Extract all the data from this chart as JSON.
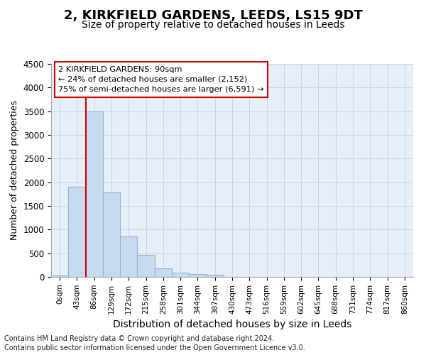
{
  "title": "2, KIRKFIELD GARDENS, LEEDS, LS15 9DT",
  "subtitle": "Size of property relative to detached houses in Leeds",
  "xlabel": "Distribution of detached houses by size in Leeds",
  "ylabel": "Number of detached properties",
  "footer_line1": "Contains HM Land Registry data © Crown copyright and database right 2024.",
  "footer_line2": "Contains public sector information licensed under the Open Government Licence v3.0.",
  "bar_labels": [
    "0sqm",
    "43sqm",
    "86sqm",
    "129sqm",
    "172sqm",
    "215sqm",
    "258sqm",
    "301sqm",
    "344sqm",
    "387sqm",
    "430sqm",
    "473sqm",
    "516sqm",
    "559sqm",
    "602sqm",
    "645sqm",
    "688sqm",
    "731sqm",
    "774sqm",
    "817sqm",
    "860sqm"
  ],
  "bar_values": [
    30,
    1900,
    3500,
    1780,
    850,
    460,
    175,
    95,
    65,
    50,
    0,
    0,
    0,
    0,
    0,
    0,
    0,
    0,
    0,
    0,
    0
  ],
  "bar_color": "#c8daf0",
  "bar_edge_color": "#8cb4d8",
  "ylim": [
    0,
    4500
  ],
  "yticks": [
    0,
    500,
    1000,
    1500,
    2000,
    2500,
    3000,
    3500,
    4000,
    4500
  ],
  "vline_x": 2,
  "vline_color": "#cc0000",
  "annotation_line1": "2 KIRKFIELD GARDENS: 90sqm",
  "annotation_line2": "← 24% of detached houses are smaller (2,152)",
  "annotation_line3": "75% of semi-detached houses are larger (6,591) →",
  "annotation_box_color": "#cc0000",
  "grid_color": "#c8d4e8",
  "plot_bg_color": "#e8eef8",
  "title_fontsize": 13,
  "subtitle_fontsize": 10,
  "ylabel_fontsize": 9,
  "xlabel_fontsize": 10
}
